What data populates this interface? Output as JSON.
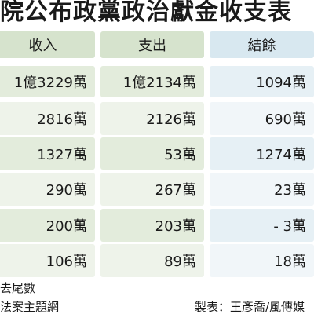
{
  "title": "院公布政黨政治獻金收支表",
  "table": {
    "headers": [
      "收入",
      "支出",
      "結餘"
    ],
    "rows": [
      [
        "1億3229萬",
        "1億2134萬",
        "1094萬"
      ],
      [
        "2816萬",
        "2126萬",
        "690萬"
      ],
      [
        "1327萬",
        "53萬",
        "1274萬"
      ],
      [
        "290萬",
        "267萬",
        "23萬"
      ],
      [
        "200萬",
        "203萬",
        "- 3萬"
      ],
      [
        "106萬",
        "89萬",
        "18萬"
      ]
    ]
  },
  "footnotes": {
    "note": "去尾數",
    "source": "法案主題網",
    "credit": "製表：王彥喬/風傳媒"
  },
  "colors": {
    "header_green": "#d6e3cd",
    "header_blue": "#d8e8f0",
    "row_green_dark": "#e3ecdc",
    "row_green_light": "#eef3ea",
    "row_blue_dark": "#e6f0f5",
    "row_blue_light": "#f1f6f9"
  }
}
